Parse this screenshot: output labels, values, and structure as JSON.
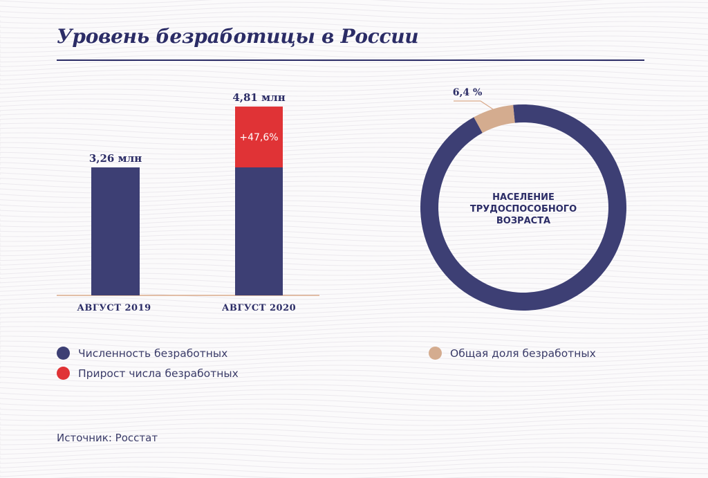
{
  "chart_data": [
    {
      "type": "bar",
      "title": "Уровень безработицы в России",
      "categories": [
        "АВГУСТ 2019",
        "АВГУСТ 2020"
      ],
      "series": [
        {
          "name": "Численность безработных",
          "values": [
            3.26,
            3.26
          ]
        },
        {
          "name": "Прирост числа безработных",
          "values": [
            0,
            1.55
          ]
        }
      ],
      "value_labels": [
        "3,26 млн",
        "4,81 млн"
      ],
      "segment_labels": [
        "",
        "+47,6%"
      ],
      "unit": "млн",
      "ylim": [
        0,
        5.2
      ],
      "grid": false,
      "legend": "bottom-left"
    },
    {
      "type": "pie",
      "center_label": [
        "НАСЕЛЕНИЕ",
        "ТРУДОСПОСОБНОГО",
        "ВОЗРАСТА"
      ],
      "slices": [
        {
          "name": "Общая доля безработных",
          "value": 6.4,
          "label": "6,4 %"
        },
        {
          "value": 93.6
        }
      ],
      "legend": "bottom-right"
    }
  ],
  "legend": {
    "items": [
      {
        "label": "Численность безработных",
        "color": "#3d3f74"
      },
      {
        "label": "Прирост числа безработных",
        "color": "#e03336"
      },
      {
        "label": "Общая доля безработных",
        "color": "#d4ac8f"
      }
    ]
  },
  "source": "Источник: Росстат",
  "colors": {
    "navy": "#3d3f74",
    "red": "#e03336",
    "beige": "#d4ac8f",
    "axis": "#d9a98a",
    "title": "#2b2c66"
  }
}
